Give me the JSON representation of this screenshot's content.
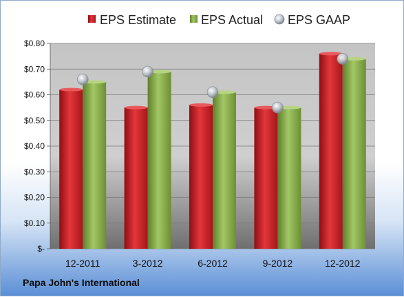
{
  "company": "Papa John's International",
  "colors": {
    "estimate": "#cc1f24",
    "actual": "#8aac4a",
    "gaap": "#b8bfc8"
  },
  "chart_data": {
    "type": "bar",
    "categories": [
      "12-2011",
      "3-2012",
      "6-2012",
      "9-2012",
      "12-2012"
    ],
    "series": [
      {
        "name": "EPS Estimate",
        "type": "bar",
        "values": [
          0.62,
          0.55,
          0.56,
          0.55,
          0.76
        ]
      },
      {
        "name": "EPS Actual",
        "type": "bar",
        "values": [
          0.65,
          0.69,
          0.61,
          0.55,
          0.74
        ]
      },
      {
        "name": "EPS GAAP",
        "type": "scatter",
        "values": [
          0.66,
          0.69,
          0.61,
          0.55,
          0.74
        ]
      }
    ],
    "yticks": [
      "$-",
      "$0.10",
      "$0.20",
      "$0.30",
      "$0.40",
      "$0.50",
      "$0.60",
      "$0.70",
      "$0.80"
    ],
    "ylim": [
      0,
      0.8
    ],
    "grid": true,
    "legend": "top"
  }
}
